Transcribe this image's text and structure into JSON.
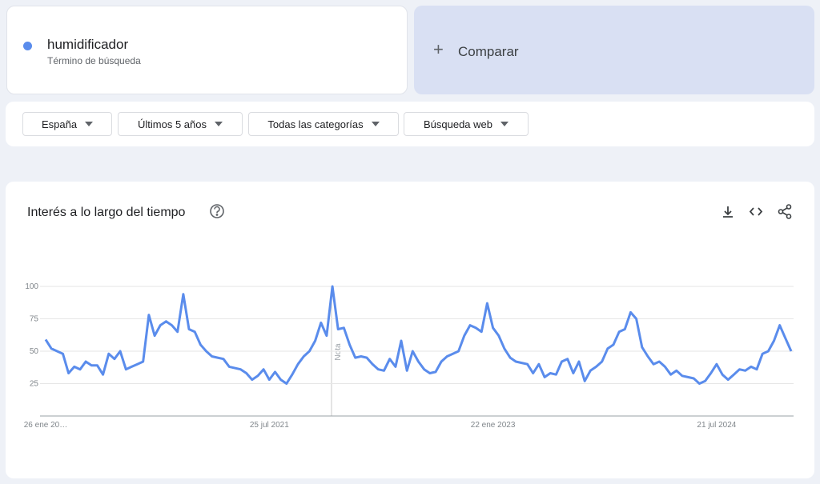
{
  "search": {
    "subtitle": "Término de búsqueda",
    "compare": "Comparar"
  },
  "filters": [
    "España",
    "Últimos 5 años",
    "Todas las categorías",
    "Búsqueda web"
  ],
  "chart_data": {
    "type": "line",
    "title": "Interés a lo largo del tiempo",
    "annotation": "Nota",
    "categories": [
      "26 ene 20…",
      null,
      null,
      null,
      null,
      null,
      null,
      null,
      null,
      null,
      null,
      null,
      null,
      null,
      null,
      null,
      null,
      null,
      null,
      null,
      null,
      null,
      null,
      null,
      null,
      null,
      null,
      null,
      null,
      null,
      null,
      null,
      null,
      null,
      null,
      null,
      null,
      null,
      null,
      "25 jul 2021",
      null,
      null,
      null,
      null,
      null,
      null,
      null,
      null,
      null,
      null,
      null,
      null,
      null,
      null,
      null,
      null,
      null,
      null,
      null,
      null,
      null,
      null,
      null,
      null,
      null,
      null,
      null,
      null,
      null,
      null,
      null,
      null,
      null,
      null,
      null,
      null,
      null,
      null,
      "22 ene 2023",
      null,
      null,
      null,
      null,
      null,
      null,
      null,
      null,
      null,
      null,
      null,
      null,
      null,
      null,
      null,
      null,
      null,
      null,
      null,
      null,
      null,
      null,
      null,
      null,
      null,
      null,
      null,
      null,
      null,
      null,
      null,
      null,
      null,
      null,
      null,
      null,
      null,
      null,
      "21 jul 2024",
      null,
      null,
      null,
      null,
      null,
      null,
      null,
      null,
      null,
      null,
      null,
      null,
      null
    ],
    "series": [
      {
        "name": "humidificador",
        "color": "#5a8cec",
        "values": [
          59,
          52,
          50,
          48,
          33,
          38,
          36,
          42,
          39,
          39,
          32,
          48,
          44,
          50,
          36,
          38,
          40,
          42,
          78,
          62,
          70,
          73,
          70,
          65,
          94,
          67,
          65,
          55,
          50,
          46,
          45,
          44,
          38,
          37,
          36,
          33,
          28,
          31,
          36,
          28,
          34,
          28,
          25,
          32,
          40,
          46,
          50,
          58,
          72,
          62,
          100,
          67,
          68,
          55,
          45,
          46,
          45,
          40,
          36,
          35,
          44,
          38,
          58,
          35,
          50,
          42,
          36,
          33,
          34,
          42,
          46,
          48,
          50,
          62,
          70,
          68,
          65,
          87,
          68,
          62,
          52,
          45,
          42,
          41,
          40,
          33,
          40,
          30,
          33,
          32,
          42,
          44,
          33,
          42,
          27,
          35,
          38,
          42,
          52,
          55,
          65,
          67,
          80,
          75,
          53,
          46,
          40,
          42,
          38,
          32,
          35,
          31,
          30,
          29,
          25,
          27,
          33,
          40,
          32,
          28,
          32,
          36,
          35,
          38,
          36,
          48,
          50,
          58,
          70,
          60,
          50
        ]
      }
    ],
    "ylim": [
      0,
      100
    ],
    "yticks": [
      25,
      50,
      75,
      100
    ],
    "grid": true
  }
}
